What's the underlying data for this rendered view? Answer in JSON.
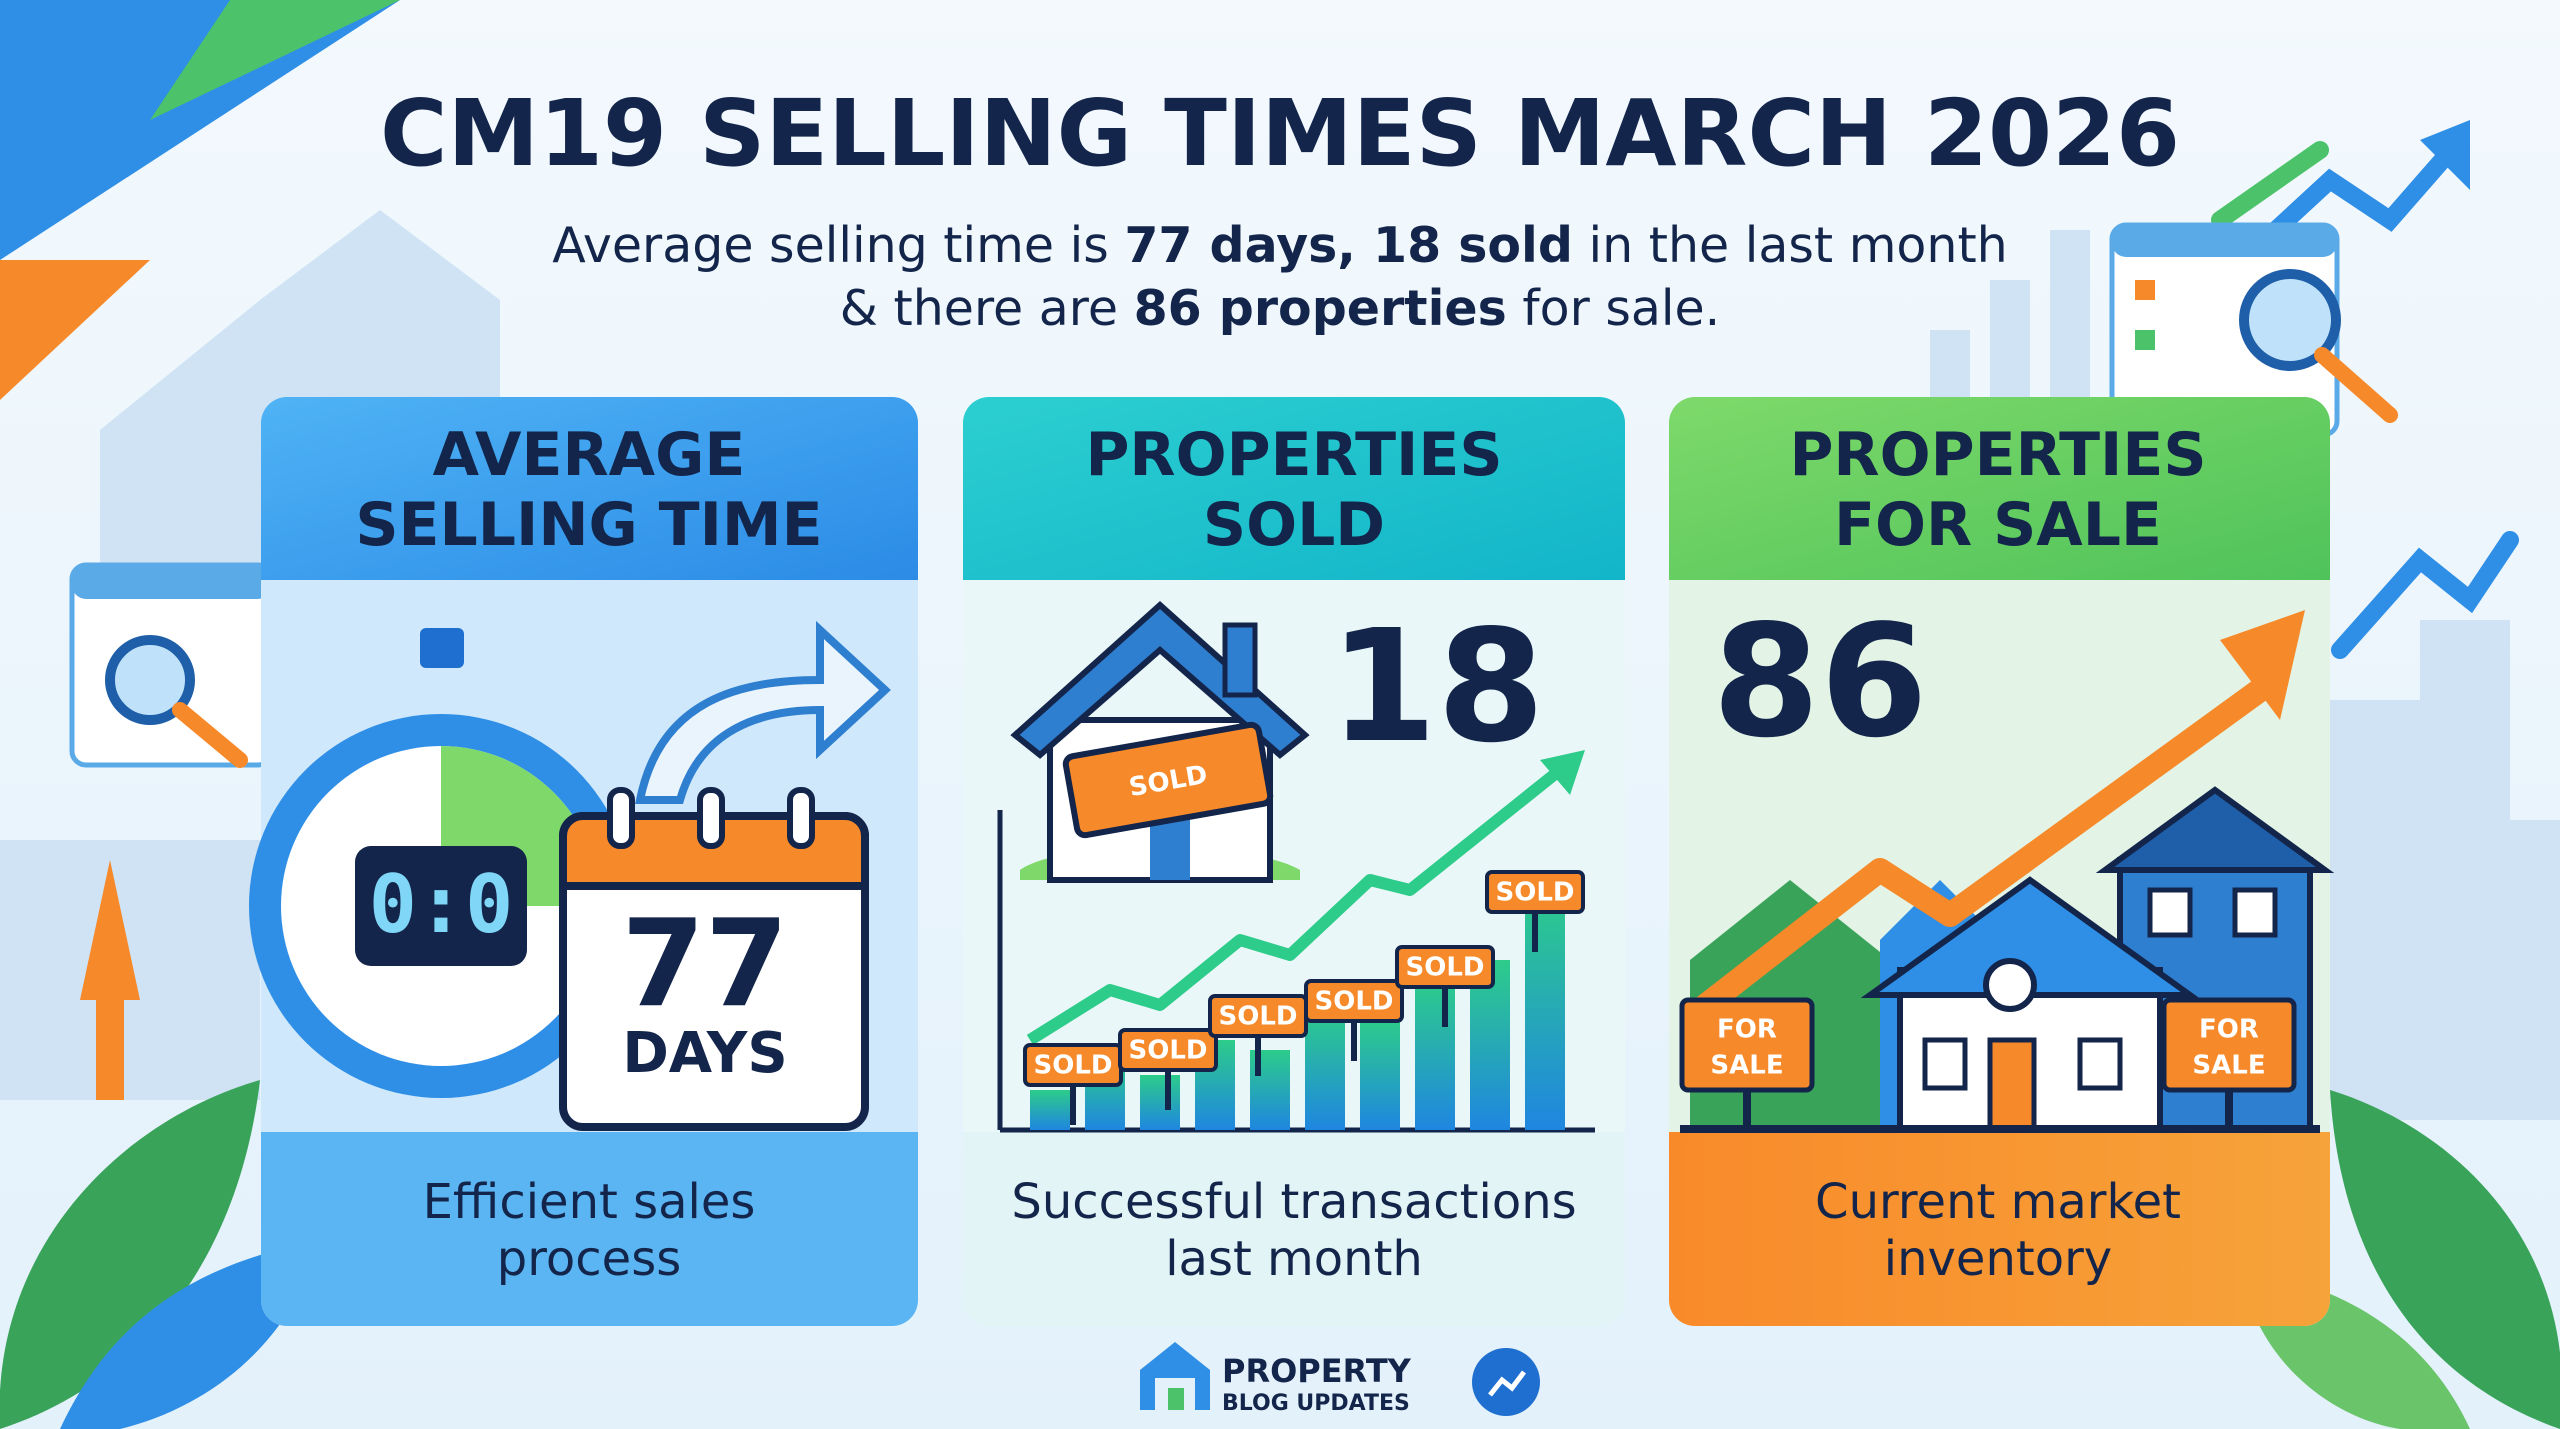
{
  "header": {
    "title": "CM19 SELLING TIMES MARCH 2026",
    "subtitle": {
      "line1": [
        "Average selling time is ",
        "77 days, 18 sold",
        " in the last month"
      ],
      "line2": [
        "& there are ",
        "86 properties",
        " for sale."
      ]
    }
  },
  "cards": [
    {
      "title_lines": [
        "AVERAGE",
        "SELLING TIME"
      ],
      "clock": "0:0",
      "value": "77",
      "unit": "DAYS",
      "caption_lines": [
        "Efficient sales",
        "process"
      ]
    },
    {
      "title_lines": [
        "PROPERTIES",
        "SOLD"
      ],
      "value": "18",
      "house_sign": "SOLD",
      "sold_signs": [
        "SOLD",
        "SOLD",
        "SOLD",
        "SOLD",
        "SOLD",
        "SOLD"
      ],
      "caption_lines": [
        "Successful transactions",
        "last month"
      ]
    },
    {
      "title_lines": [
        "PROPERTIES",
        "FOR SALE"
      ],
      "value": "86",
      "for_sale_signs": [
        [
          "FOR",
          "SALE"
        ],
        [
          "FOR",
          "SALE"
        ]
      ],
      "caption_lines": [
        "Current market",
        "inventory"
      ]
    }
  ],
  "logo": {
    "line1": "PROPERTY",
    "line2": "BLOG UPDATES"
  }
}
